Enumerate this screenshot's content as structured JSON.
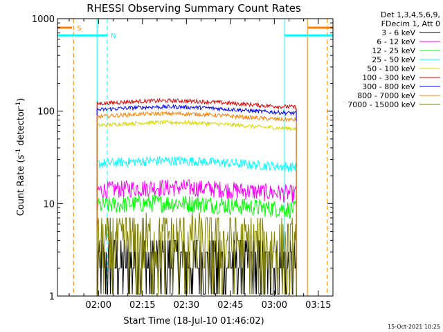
{
  "chart_data": {
    "type": "line",
    "title": "RHESSI Observing Summary Count Rates",
    "xlabel": "Start Time (18-Jul-10 01:46:02)",
    "ylabel_main": "Count Rate (s",
    "ylabel_sup1": "-1",
    "ylabel_mid": " detector",
    "ylabel_sup2": "-1",
    "ylabel_end": ")",
    "y_scale": "log",
    "ylim": [
      1,
      1000
    ],
    "xlim_minutes_since_start": [
      0,
      94
    ],
    "x_ticks": [
      {
        "label": "02:00",
        "minutes_since_start": 14
      },
      {
        "label": "02:15",
        "minutes_since_start": 29
      },
      {
        "label": "02:30",
        "minutes_since_start": 44
      },
      {
        "label": "02:45",
        "minutes_since_start": 59
      },
      {
        "label": "03:00",
        "minutes_since_start": 74
      },
      {
        "label": "03:15",
        "minutes_since_start": 89
      }
    ],
    "y_ticks": [
      {
        "label": "1",
        "value": 1
      },
      {
        "label": "10",
        "value": 10
      },
      {
        "label": "100",
        "value": 100
      },
      {
        "label": "1000",
        "value": 1000
      }
    ],
    "legend_header": [
      "Det 1,3,4,5,6,9,",
      "FDecim 1, Att 0"
    ],
    "legend_placement": "right",
    "data_interval_minutes_since_start": [
      13.5,
      81.5
    ],
    "series": [
      {
        "name": "3 - 6 keV",
        "color": "#000000",
        "level": 2.2
      },
      {
        "name": "6 - 12 keV",
        "color": "#ff00ff",
        "level": 14
      },
      {
        "name": "12 - 25 keV",
        "color": "#00ff00",
        "level": 9.5
      },
      {
        "name": "25 - 50 keV",
        "color": "#00ffff",
        "level": 27
      },
      {
        "name": "50 - 100 keV",
        "color": "#d8d800",
        "level": 70
      },
      {
        "name": "100 - 300 keV",
        "color": "#e00000",
        "level": 120
      },
      {
        "name": "300 - 800 keV",
        "color": "#0000ff",
        "level": 103
      },
      {
        "name": "800 - 7000 keV",
        "color": "#ff8000",
        "level": 87
      },
      {
        "name": "7000 - 15000 keV",
        "color": "#808000",
        "level": 3.8
      }
    ],
    "flags": [
      {
        "label": "S",
        "color": "#ff8000",
        "segments": [
          [
            0,
            5
          ],
          [
            85.5,
            94
          ]
        ],
        "level": 800,
        "dashed_lines": [
          5.5,
          92
        ],
        "solid_lines": [
          85.3
        ]
      },
      {
        "label": "N",
        "color": "#00ffff",
        "segments": [
          [
            0,
            17
          ],
          [
            77.5,
            94
          ]
        ],
        "level": 660,
        "dashed_lines": [
          17
        ],
        "solid_lines": [
          13.5,
          77.5
        ]
      }
    ],
    "timestamp": "15-Oct-2021 10:25"
  }
}
